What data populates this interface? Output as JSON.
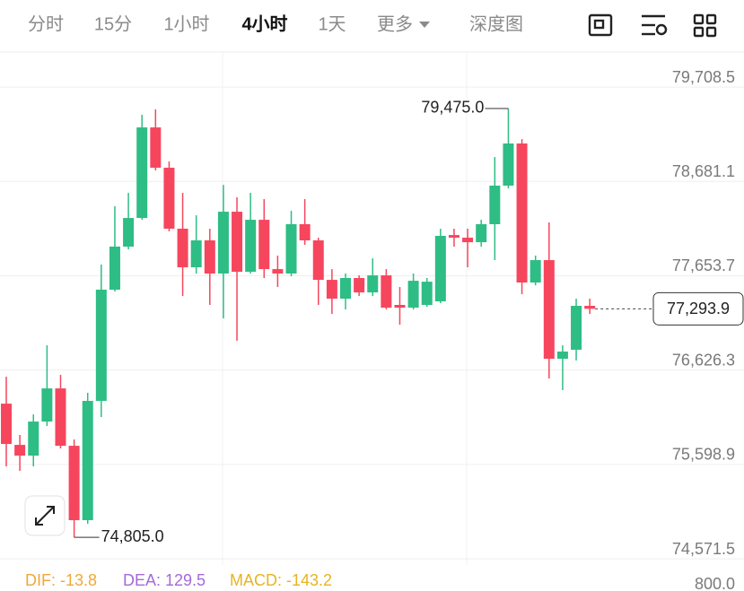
{
  "toolbar": {
    "tabs": [
      "分时",
      "15分",
      "1小时",
      "4小时",
      "1天",
      "更多",
      "深度图"
    ],
    "active": 3
  },
  "chart_data": {
    "type": "candlestick",
    "open": [
      76261,
      75812,
      75695,
      76066,
      76427,
      75802,
      74992,
      76291,
      77502,
      77971,
      78283,
      79269,
      78830,
      78166,
      77746,
      78039,
      77678,
      78351,
      77697,
      78263,
      77726,
      77678,
      78215,
      78039,
      77609,
      77404,
      77629,
      77472,
      77658,
      77336,
      77306,
      77336,
      77375,
      78097,
      78068,
      78019,
      78215,
      78635,
      79094,
      77580,
      77824,
      76750,
      76848,
      77326
    ],
    "high": [
      76554,
      75920,
      76144,
      76896,
      76574,
      75871,
      76379,
      77775,
      78410,
      78556,
      79406,
      79465,
      78898,
      78556,
      78312,
      78166,
      78644,
      78508,
      78556,
      78488,
      77873,
      78361,
      78488,
      78068,
      77726,
      77678,
      77658,
      77843,
      77726,
      77531,
      77678,
      77629,
      78166,
      78166,
      78166,
      78263,
      78947,
      79475,
      79142,
      77873,
      78234,
      76896,
      77404,
      77404
    ],
    "low": [
      75578,
      75529,
      75578,
      76017,
      75773,
      74805,
      74953,
      76115,
      77482,
      77941,
      78263,
      78801,
      78137,
      77433,
      77678,
      77336,
      77189,
      76945,
      77678,
      77629,
      77531,
      77648,
      77990,
      77336,
      77238,
      77287,
      77433,
      77433,
      77287,
      77121,
      77287,
      77316,
      77355,
      77971,
      77746,
      77971,
      77824,
      78605,
      77453,
      77550,
      76535,
      76408,
      76730,
      77238
    ],
    "close": [
      75822,
      75695,
      76066,
      76427,
      75802,
      74992,
      76291,
      77502,
      77971,
      78283,
      79269,
      78830,
      78166,
      77746,
      78039,
      77678,
      78351,
      77697,
      78263,
      77726,
      77678,
      78215,
      78039,
      77609,
      77404,
      77629,
      77472,
      77658,
      77306,
      77306,
      77599,
      77589,
      78088,
      78068,
      78019,
      78215,
      78635,
      79094,
      77580,
      77824,
      76750,
      76828,
      77326,
      77293.9
    ],
    "colors": {
      "up": "#2ebd85",
      "down": "#f6465d"
    },
    "ylim": [
      74504,
      80090
    ],
    "yticks": [
      {
        "value": 79708.5,
        "label": "79,708.5"
      },
      {
        "value": 78681.1,
        "label": "78,681.1"
      },
      {
        "value": 77653.7,
        "label": "77,653.7"
      },
      {
        "value": 76626.3,
        "label": "76,626.3"
      },
      {
        "value": 75598.9,
        "label": "75,598.9"
      },
      {
        "value": 74571.5,
        "label": "74,571.5"
      }
    ],
    "grid": true,
    "annotations": [
      {
        "value": 79475,
        "label": "79,475.0"
      },
      {
        "value": 74805,
        "label": "74,805.0"
      }
    ],
    "last_price": {
      "value": 77293.9,
      "label": "77,293.9"
    },
    "indicator": {
      "texts": [
        "DIF: -13.8",
        "DEA: 129.5",
        "MACD: -143.2"
      ],
      "colors": [
        "#f0a73a",
        "#a46ad8",
        "#e6b422"
      ],
      "axis_label": "800.0"
    }
  }
}
